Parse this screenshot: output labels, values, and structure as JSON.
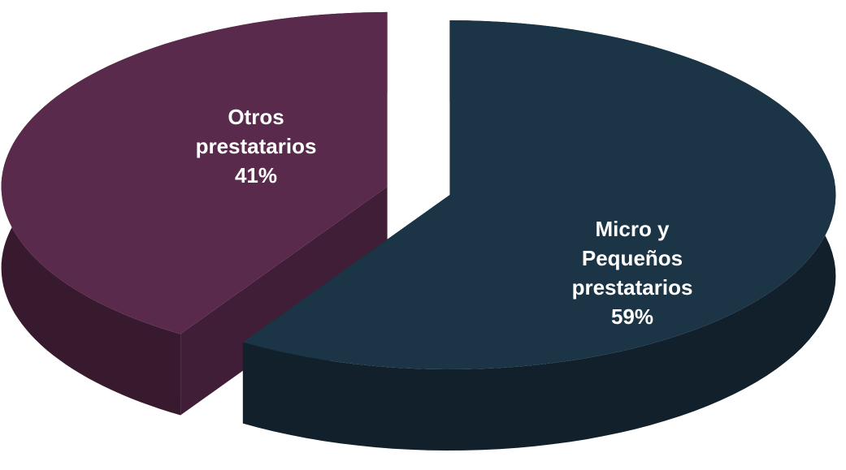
{
  "chart_data": {
    "type": "pie3d",
    "categories": [
      "Micro y Pequeños prestatarios",
      "Otros prestatarios"
    ],
    "values": [
      59,
      41
    ],
    "value_labels": [
      "59%",
      "41%"
    ],
    "colors": [
      "#1b3446",
      "#5a2a4c"
    ]
  }
}
